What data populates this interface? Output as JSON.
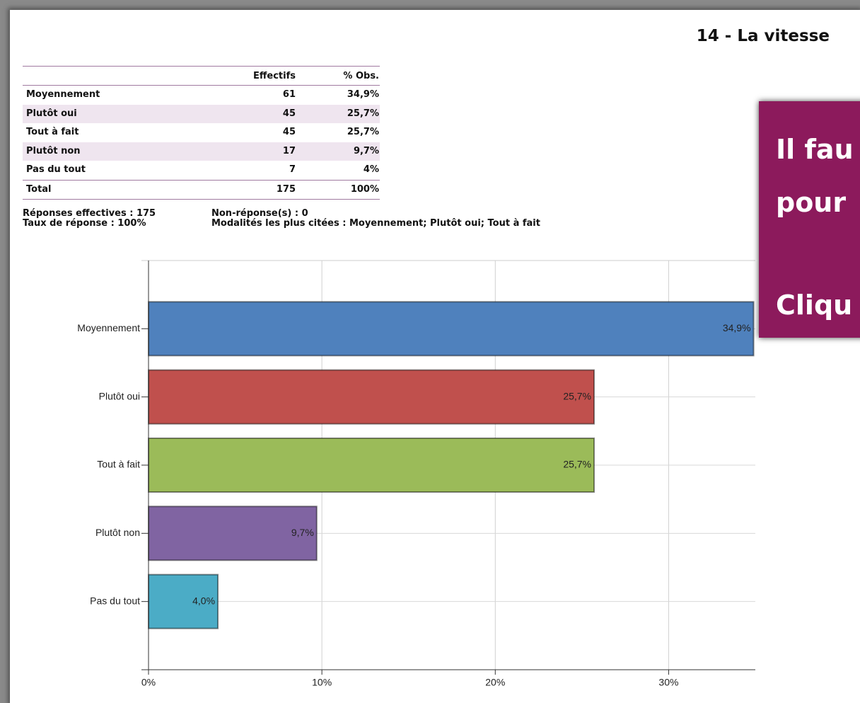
{
  "title": "14 - La vitesse",
  "table": {
    "columns": [
      "Effectifs",
      "% Obs."
    ],
    "rows": [
      [
        "Moyennement",
        61,
        "34,9%"
      ],
      [
        "Plutôt oui",
        45,
        "25,7%"
      ],
      [
        "Tout à fait",
        45,
        "25,7%"
      ],
      [
        "Plutôt non",
        17,
        "9,7%"
      ],
      [
        "Pas du tout",
        7,
        "4%"
      ]
    ],
    "total": [
      "Total",
      175,
      "100%"
    ]
  },
  "summary": {
    "left": [
      "Réponses effectives : 175",
      "Taux de réponse : 100%"
    ],
    "right": [
      "Non-réponse(s) : 0",
      "Modalités les plus citées : Moyennement; Plutôt oui; Tout à fait"
    ]
  },
  "overlay": [
    "Il fau",
    "pour",
    "Cliqu"
  ],
  "chart_data": {
    "type": "barh",
    "categories": [
      "Moyennement",
      "Plutôt oui",
      "Tout à fait",
      "Plutôt non",
      "Pas du tout"
    ],
    "values": [
      34.9,
      25.7,
      25.7,
      9.7,
      4.0
    ],
    "value_labels": [
      "34,9%",
      "25,7%",
      "25,7%",
      "9,7%",
      "4,0%"
    ],
    "colors": [
      "#4f81bd",
      "#c0504d",
      "#9bbb59",
      "#8064a2",
      "#4bacc6"
    ],
    "xlim": [
      0,
      35
    ],
    "xticks": [
      {
        "value": 0,
        "label": "0%"
      },
      {
        "value": 10,
        "label": "10%"
      },
      {
        "value": 20,
        "label": "20%"
      },
      {
        "value": 30,
        "label": "30%"
      }
    ],
    "grid": true
  }
}
